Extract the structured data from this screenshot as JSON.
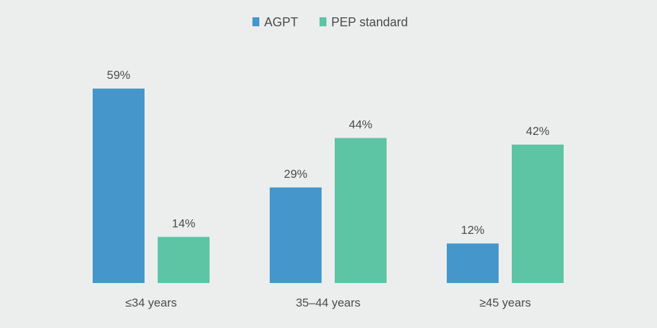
{
  "chart_data": {
    "type": "bar",
    "categories": [
      "≤34 years",
      "35–44 years",
      "≥45 years"
    ],
    "series": [
      {
        "name": "AGPT",
        "values": [
          59,
          29,
          12
        ],
        "labels": [
          "59%",
          "29%",
          "12%"
        ],
        "color": "#4597cb"
      },
      {
        "name": "PEP standard",
        "values": [
          14,
          44,
          42
        ],
        "labels": [
          "14%",
          "44%",
          "42%"
        ],
        "color": "#5dc4a4"
      }
    ],
    "title": "",
    "xlabel": "",
    "ylabel": "",
    "ylim": [
      0,
      59
    ],
    "grid": false,
    "legend_position": "top-center",
    "value_suffix": "%"
  }
}
